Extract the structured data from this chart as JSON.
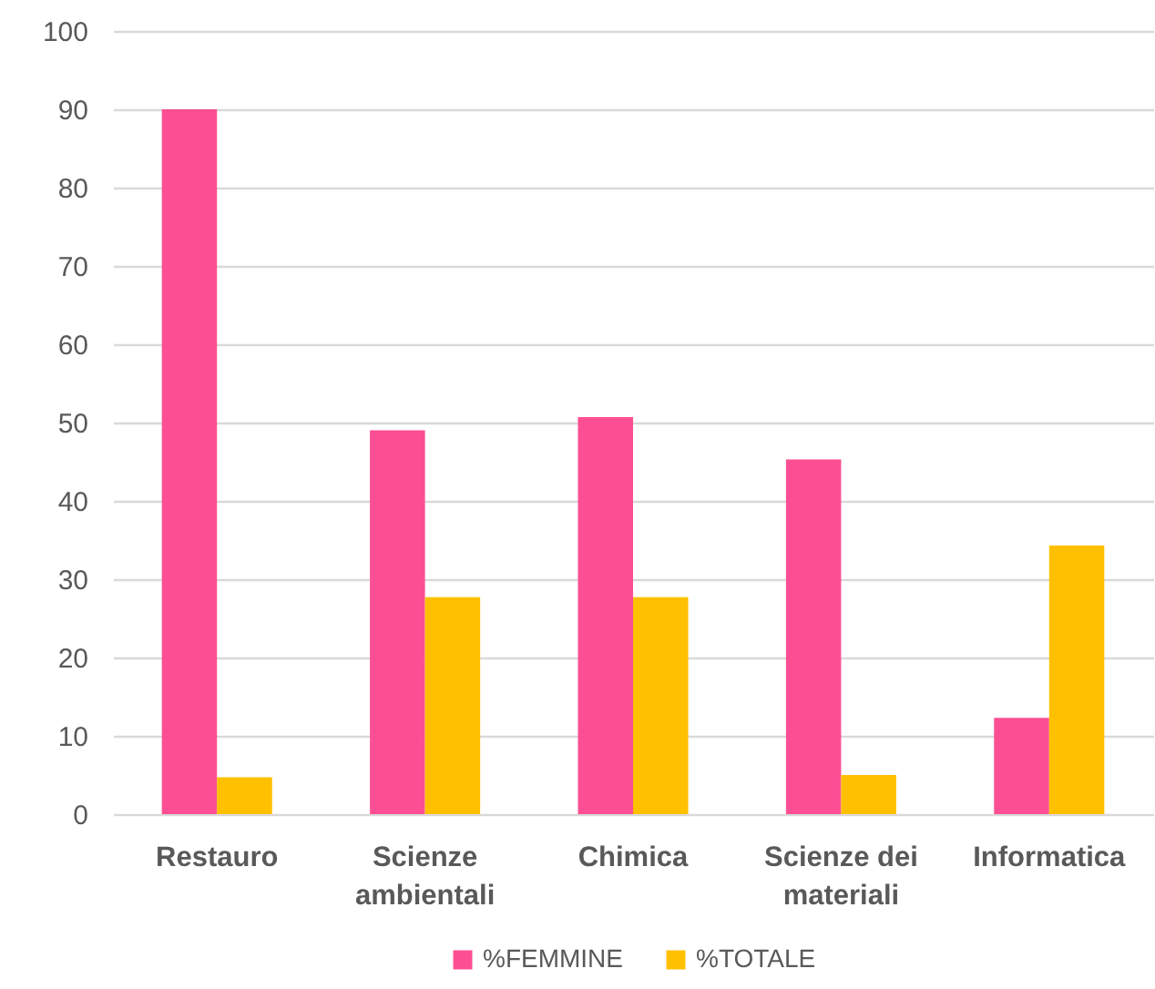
{
  "chart_data": {
    "type": "bar",
    "categories": [
      "Restauro",
      "Scienze ambientali",
      "Chimica",
      "Scienze dei materiali",
      "Informatica"
    ],
    "series": [
      {
        "name": "%FEMMINE",
        "color": "#fc4f93",
        "values": [
          90,
          49,
          50.7,
          45.3,
          12.3
        ]
      },
      {
        "name": "%TOTALE",
        "color": "#ffc000",
        "values": [
          4.7,
          27.7,
          27.7,
          5,
          34.3
        ]
      }
    ],
    "ylim": [
      0,
      100
    ],
    "yticks": [
      0,
      10,
      20,
      30,
      40,
      50,
      60,
      70,
      80,
      90,
      100
    ],
    "grid": "y",
    "legend": "bottom"
  }
}
